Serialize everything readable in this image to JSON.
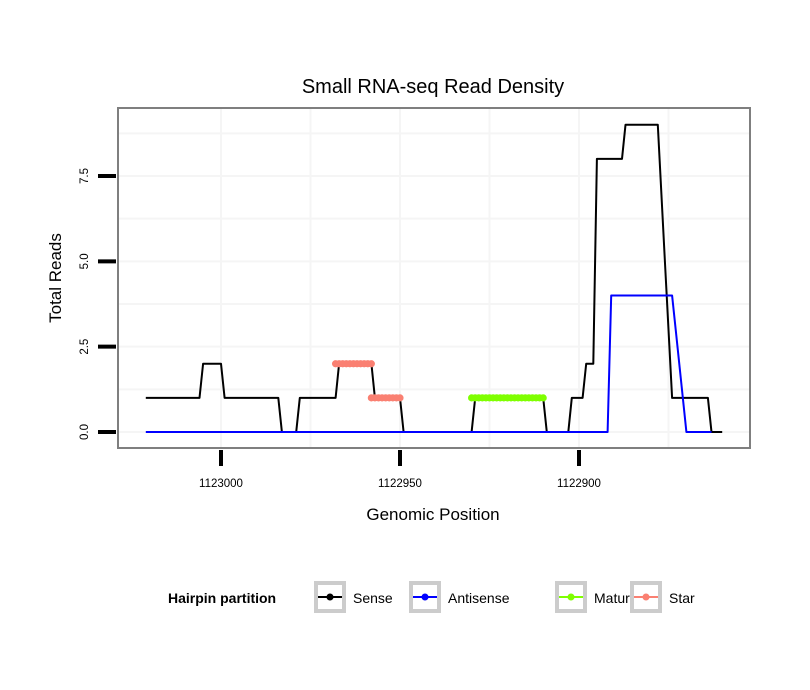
{
  "chart_data": {
    "type": "line",
    "title": "Small RNA-seq Read Density",
    "xlabel": "Genomic Position",
    "ylabel": "Total Reads",
    "x_reversed": true,
    "xlim": [
      1123028,
      1122851
    ],
    "ylim": [
      -0.45,
      9.5
    ],
    "x_ticks": [
      1123000,
      1122950,
      1122900
    ],
    "x_tick_labels": [
      "1123000",
      "1122950",
      "1122900"
    ],
    "x_minor_grid": [
      1122975,
      1122925,
      1122875
    ],
    "y_ticks": [
      0,
      2.5,
      5,
      7.5
    ],
    "y_tick_labels": [
      "0.0",
      "2.5",
      "5.0",
      "7.5"
    ],
    "y_minor_grid": [
      1.25,
      3.75,
      6.25,
      8.75
    ],
    "grid": true,
    "legend": {
      "title": "Hairpin partition",
      "position": "bottom",
      "entries": [
        {
          "label": "Sense",
          "color": "#000000"
        },
        {
          "label": "Antisense",
          "color": "#0000ff"
        },
        {
          "label": "Mature",
          "color": "#7fff00"
        },
        {
          "label": "Star",
          "color": "#fa8072"
        }
      ]
    },
    "series": [
      {
        "name": "Sense",
        "color": "#000000",
        "style": "line",
        "points": [
          [
            1123021,
            1
          ],
          [
            1123006,
            1
          ],
          [
            1123005,
            2
          ],
          [
            1123000,
            2
          ],
          [
            1122999,
            1
          ],
          [
            1122984,
            1
          ],
          [
            1122983,
            0
          ],
          [
            1122979,
            0
          ],
          [
            1122978,
            1
          ],
          [
            1122968,
            1
          ],
          [
            1122967,
            2
          ],
          [
            1122958,
            2
          ],
          [
            1122957,
            1
          ],
          [
            1122950,
            1
          ],
          [
            1122949,
            0
          ],
          [
            1122930,
            0
          ],
          [
            1122929,
            1
          ],
          [
            1122910,
            1
          ],
          [
            1122909,
            0
          ],
          [
            1122903,
            0
          ],
          [
            1122902,
            1
          ],
          [
            1122899,
            1
          ],
          [
            1122898,
            2
          ],
          [
            1122896,
            2
          ],
          [
            1122895,
            8
          ],
          [
            1122888,
            8
          ],
          [
            1122887,
            9
          ],
          [
            1122878,
            9
          ],
          [
            1122876,
            5
          ],
          [
            1122874,
            1
          ],
          [
            1122864,
            1
          ],
          [
            1122863,
            0
          ],
          [
            1122860,
            0
          ]
        ]
      },
      {
        "name": "Antisense",
        "color": "#0000ff",
        "style": "line",
        "points": [
          [
            1123021,
            0
          ],
          [
            1122892,
            0
          ],
          [
            1122891,
            4
          ],
          [
            1122874,
            4
          ],
          [
            1122873,
            3
          ],
          [
            1122870,
            0
          ],
          [
            1122863,
            0
          ]
        ]
      },
      {
        "name": "Mature",
        "color": "#7fff00",
        "style": "points",
        "points": [
          [
            1122930,
            1
          ],
          [
            1122929,
            1
          ],
          [
            1122928,
            1
          ],
          [
            1122927,
            1
          ],
          [
            1122926,
            1
          ],
          [
            1122925,
            1
          ],
          [
            1122924,
            1
          ],
          [
            1122923,
            1
          ],
          [
            1122922,
            1
          ],
          [
            1122921,
            1
          ],
          [
            1122920,
            1
          ],
          [
            1122919,
            1
          ],
          [
            1122918,
            1
          ],
          [
            1122917,
            1
          ],
          [
            1122916,
            1
          ],
          [
            1122915,
            1
          ],
          [
            1122914,
            1
          ],
          [
            1122913,
            1
          ],
          [
            1122912,
            1
          ],
          [
            1122911,
            1
          ],
          [
            1122910,
            1
          ]
        ]
      },
      {
        "name": "Star",
        "color": "#fa8072",
        "style": "points",
        "points": [
          [
            1122968,
            2
          ],
          [
            1122967,
            2
          ],
          [
            1122966,
            2
          ],
          [
            1122965,
            2
          ],
          [
            1122964,
            2
          ],
          [
            1122963,
            2
          ],
          [
            1122962,
            2
          ],
          [
            1122961,
            2
          ],
          [
            1122960,
            2
          ],
          [
            1122959,
            2
          ],
          [
            1122958,
            2
          ],
          [
            1122958,
            1
          ],
          [
            1122957,
            1
          ],
          [
            1122956,
            1
          ],
          [
            1122955,
            1
          ],
          [
            1122954,
            1
          ],
          [
            1122953,
            1
          ],
          [
            1122952,
            1
          ],
          [
            1122951,
            1
          ],
          [
            1122950,
            1
          ]
        ]
      }
    ]
  }
}
